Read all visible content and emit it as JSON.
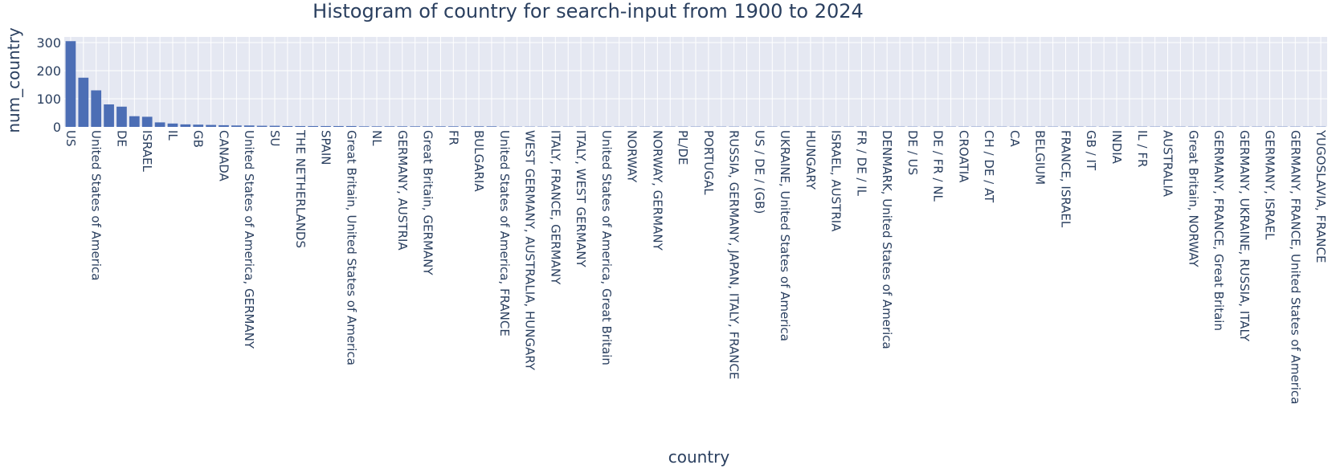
{
  "chart_data": {
    "type": "bar",
    "title": "Histogram of country for search-input  from 1900 to 2024",
    "xlabel": "country",
    "ylabel": "num_country",
    "ylim": [
      0,
      320
    ],
    "yticks": [
      0,
      100,
      200,
      300
    ],
    "grid": true,
    "bar_color": "#4c6eb5",
    "plot_bg": "#e5e8f2",
    "categories": [
      "US",
      "",
      "United States of America",
      "",
      "DE",
      "",
      "ISRAEL",
      "",
      "IL",
      "",
      "GB",
      "",
      "CANADA",
      "",
      "United States of America, GERMANY",
      "",
      "SU",
      "",
      "THE NETHERLANDS",
      "",
      "SPAIN",
      "",
      "Great Britain, United States of America",
      "",
      "NL",
      "",
      "GERMANY, AUSTRIA",
      "",
      "Great Britain, GERMANY",
      "",
      "FR",
      "",
      "BULGARIA",
      "",
      "United States of America, FRANCE",
      "",
      "WEST GERMANY, AUSTRALIA, HUNGARY",
      "",
      "ITALY, FRANCE, GERMANY",
      "",
      "ITALY, WEST GERMANY",
      "",
      "United States of America, Great Britain",
      "",
      "NORWAY",
      "",
      "NORWAY, GERMANY",
      "",
      "PL/DE",
      "",
      "PORTUGAL",
      "",
      "RUSSIA, GERMANY, JAPAN, ITALY, FRANCE",
      "",
      "US / DE / (GB)",
      "",
      "UKRAINE, United States of America",
      "",
      "HUNGARY",
      "",
      "ISRAEL, AUSTRIA",
      "",
      "FR / DE / IL",
      "",
      "DENMARK, United States of America",
      "",
      "DE / US",
      "",
      "DE / FR / NL",
      "",
      "CROATIA",
      "",
      "CH / DE / AT",
      "",
      "CA",
      "",
      "BELGIUM",
      "",
      "FRANCE, ISRAEL",
      "",
      "GB / IT",
      "",
      "INDIA",
      "",
      "IL / FR",
      "",
      "AUSTRALIA",
      "",
      "Great Britain, NORWAY",
      "",
      "GERMANY, FRANCE, Great Britain",
      "",
      "GERMANY, UKRAINE, RUSSIA, ITALY",
      "",
      "GERMANY, ISRAEL",
      "",
      "GERMANY, FRANCE, United States of America",
      "",
      "YUGOSLAVIA, FRANCE"
    ],
    "values": [
      305,
      175,
      130,
      80,
      72,
      38,
      36,
      16,
      12,
      9,
      8,
      7,
      6,
      5,
      5,
      4,
      4,
      3,
      3,
      3,
      3,
      3,
      3,
      2,
      2,
      2,
      2,
      2,
      2,
      2,
      2,
      2,
      2,
      2,
      1,
      1,
      1,
      1,
      1,
      1,
      1,
      1,
      1,
      1,
      1,
      1,
      1,
      1,
      1,
      1,
      1,
      1,
      1,
      1,
      1,
      1,
      1,
      1,
      1,
      1,
      1,
      1,
      1,
      1,
      1,
      1,
      1,
      1,
      1,
      1,
      1,
      1,
      1,
      1,
      1,
      1,
      1,
      1,
      1,
      1,
      1,
      1,
      1,
      1,
      1,
      1,
      1,
      1,
      1,
      1,
      1,
      1,
      1,
      1,
      1,
      1,
      1,
      1,
      1
    ]
  }
}
